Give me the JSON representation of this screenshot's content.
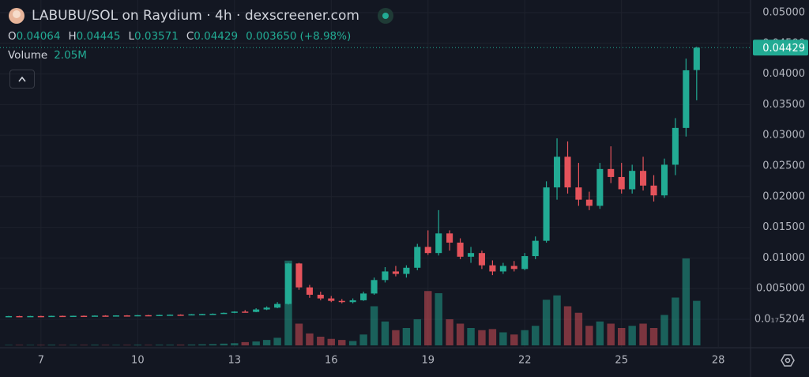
{
  "chart_data": {
    "type": "candlestick",
    "title": "LABUBU/SOL on Raydium · 4h · dexscreener.com",
    "ohlc": [
      {
        "label": "O",
        "value": 0.04064
      },
      {
        "label": "H",
        "value": 0.04445
      },
      {
        "label": "L",
        "value": 0.03571
      },
      {
        "label": "C",
        "value": 0.04429
      }
    ],
    "change": {
      "value": 0.00365,
      "label": "0.003650"
    },
    "change_pct": {
      "value": 8.98,
      "label": "(+8.98%)"
    },
    "volume_title": "Volume",
    "volume_last": {
      "value": 2.05,
      "label": "2.05M"
    },
    "last_price": 0.04429,
    "up_color": "#22ab94",
    "down_color": "#e5535b",
    "grid": true,
    "x": [
      6,
      6.33,
      6.67,
      7,
      7.33,
      7.67,
      8,
      8.33,
      8.67,
      9,
      9.33,
      9.67,
      10,
      10.33,
      10.67,
      11,
      11.33,
      11.67,
      12,
      12.33,
      12.67,
      13,
      13.33,
      13.67,
      14,
      14.33,
      14.67,
      15,
      15.33,
      15.67,
      16,
      16.33,
      16.67,
      17,
      17.33,
      17.67,
      18,
      18.33,
      18.67,
      19,
      19.33,
      19.67,
      20,
      20.33,
      20.67,
      21,
      21.33,
      21.67,
      22,
      22.33,
      22.67,
      23,
      23.33,
      23.67,
      24,
      24.33,
      24.67,
      25,
      25.33,
      25.67,
      26,
      26.33,
      26.67,
      27,
      27.33
    ],
    "open": [
      0.0005,
      0.00052,
      0.0005,
      0.00053,
      0.00051,
      0.00056,
      0.00054,
      0.00057,
      0.00055,
      0.0006,
      0.00058,
      0.00063,
      0.00061,
      0.00067,
      0.00065,
      0.00071,
      0.00075,
      0.00073,
      0.00082,
      0.00086,
      0.0009,
      0.00105,
      0.00125,
      0.0012,
      0.0016,
      0.0019,
      0.0025,
      0.0091,
      0.0052,
      0.004,
      0.0034,
      0.003,
      0.0028,
      0.0031,
      0.0042,
      0.0064,
      0.0078,
      0.0074,
      0.0084,
      0.0118,
      0.0108,
      0.014,
      0.0125,
      0.0102,
      0.0108,
      0.0088,
      0.0078,
      0.0087,
      0.0082,
      0.0103,
      0.0128,
      0.0215,
      0.0265,
      0.0215,
      0.0195,
      0.0185,
      0.0245,
      0.0232,
      0.0212,
      0.0242,
      0.0218,
      0.0202,
      0.0252,
      0.0312,
      0.04064
    ],
    "high": [
      0.00055,
      0.00056,
      0.00055,
      0.00057,
      0.00058,
      0.0006,
      0.00059,
      0.00062,
      0.00063,
      0.00066,
      0.00065,
      0.00068,
      0.0007,
      0.00072,
      0.00074,
      0.00078,
      0.0008,
      0.00085,
      0.0009,
      0.00095,
      0.0011,
      0.0013,
      0.0015,
      0.0018,
      0.0021,
      0.0028,
      0.0092,
      0.0092,
      0.0056,
      0.0045,
      0.0038,
      0.0033,
      0.0034,
      0.0045,
      0.0068,
      0.0085,
      0.0087,
      0.0088,
      0.0123,
      0.0145,
      0.0178,
      0.0145,
      0.0132,
      0.0118,
      0.0112,
      0.0096,
      0.0092,
      0.0095,
      0.0108,
      0.0135,
      0.0225,
      0.0295,
      0.029,
      0.0255,
      0.0208,
      0.0255,
      0.0282,
      0.0255,
      0.0252,
      0.0265,
      0.0235,
      0.0262,
      0.0328,
      0.0425,
      0.04445
    ],
    "low": [
      0.00045,
      0.00048,
      0.00047,
      0.0005,
      0.0005,
      0.00052,
      0.00051,
      0.00054,
      0.00053,
      0.00057,
      0.00056,
      0.0006,
      0.00059,
      0.00063,
      0.00063,
      0.00068,
      0.0007,
      0.00071,
      0.00078,
      0.00082,
      0.00088,
      0.001,
      0.0011,
      0.00115,
      0.0015,
      0.0018,
      0.0024,
      0.0048,
      0.0035,
      0.0031,
      0.0028,
      0.0026,
      0.0026,
      0.003,
      0.004,
      0.006,
      0.007,
      0.0068,
      0.008,
      0.0105,
      0.0104,
      0.0112,
      0.0098,
      0.0092,
      0.0082,
      0.0072,
      0.0074,
      0.0078,
      0.008,
      0.0098,
      0.0125,
      0.0195,
      0.0205,
      0.0185,
      0.0178,
      0.018,
      0.0222,
      0.0205,
      0.0205,
      0.021,
      0.0192,
      0.0198,
      0.0235,
      0.0298,
      0.03571
    ],
    "close": [
      0.00052,
      0.0005,
      0.00053,
      0.00051,
      0.00056,
      0.00054,
      0.00057,
      0.00055,
      0.0006,
      0.00058,
      0.00063,
      0.00061,
      0.00067,
      0.00065,
      0.00071,
      0.00075,
      0.00073,
      0.00082,
      0.00086,
      0.0009,
      0.00105,
      0.00125,
      0.0012,
      0.0016,
      0.0019,
      0.0025,
      0.0091,
      0.0052,
      0.004,
      0.0034,
      0.003,
      0.0028,
      0.0031,
      0.0042,
      0.0064,
      0.0078,
      0.0074,
      0.0084,
      0.0118,
      0.0108,
      0.014,
      0.0125,
      0.0102,
      0.0108,
      0.0088,
      0.0078,
      0.0087,
      0.0082,
      0.0103,
      0.0128,
      0.0215,
      0.0265,
      0.0215,
      0.0195,
      0.0185,
      0.0245,
      0.0232,
      0.0212,
      0.0242,
      0.0218,
      0.0202,
      0.0252,
      0.0312,
      0.0406,
      0.04429
    ],
    "volume": [
      0.02,
      0.02,
      0.02,
      0.02,
      0.03,
      0.02,
      0.02,
      0.02,
      0.03,
      0.02,
      0.02,
      0.02,
      0.03,
      0.02,
      0.03,
      0.03,
      0.03,
      0.04,
      0.05,
      0.06,
      0.08,
      0.1,
      0.15,
      0.18,
      0.25,
      0.35,
      3.9,
      1.0,
      0.55,
      0.4,
      0.3,
      0.25,
      0.2,
      0.5,
      1.8,
      1.1,
      0.7,
      0.8,
      1.2,
      2.5,
      2.4,
      1.2,
      1.0,
      0.8,
      0.7,
      0.75,
      0.6,
      0.5,
      0.7,
      0.9,
      2.1,
      2.3,
      1.8,
      1.5,
      0.9,
      1.1,
      1.0,
      0.8,
      0.9,
      1.0,
      0.8,
      1.4,
      2.2,
      4.0,
      2.05
    ],
    "xlim": [
      5.73,
      29
    ],
    "xticks": [
      7,
      10,
      13,
      16,
      19,
      22,
      25,
      28
    ],
    "ylim": [
      -0.00619,
      0.05206
    ],
    "yticks": [
      {
        "value": 0.05,
        "label": "0.05000"
      },
      {
        "value": 0.045,
        "label": "0.04500"
      },
      {
        "value": 0.04,
        "label": "0.04000"
      },
      {
        "value": 0.035,
        "label": "0.03500"
      },
      {
        "value": 0.03,
        "label": "0.03000"
      },
      {
        "value": 0.025,
        "label": "0.02500"
      },
      {
        "value": 0.02,
        "label": "0.02000"
      },
      {
        "value": 0.015,
        "label": "0.01500"
      },
      {
        "value": 0.01,
        "label": "0.01000"
      },
      {
        "value": 0.005,
        "label": "0.005000"
      },
      {
        "value": 5.204e-18,
        "label": "0.0₁₇5204"
      }
    ]
  }
}
